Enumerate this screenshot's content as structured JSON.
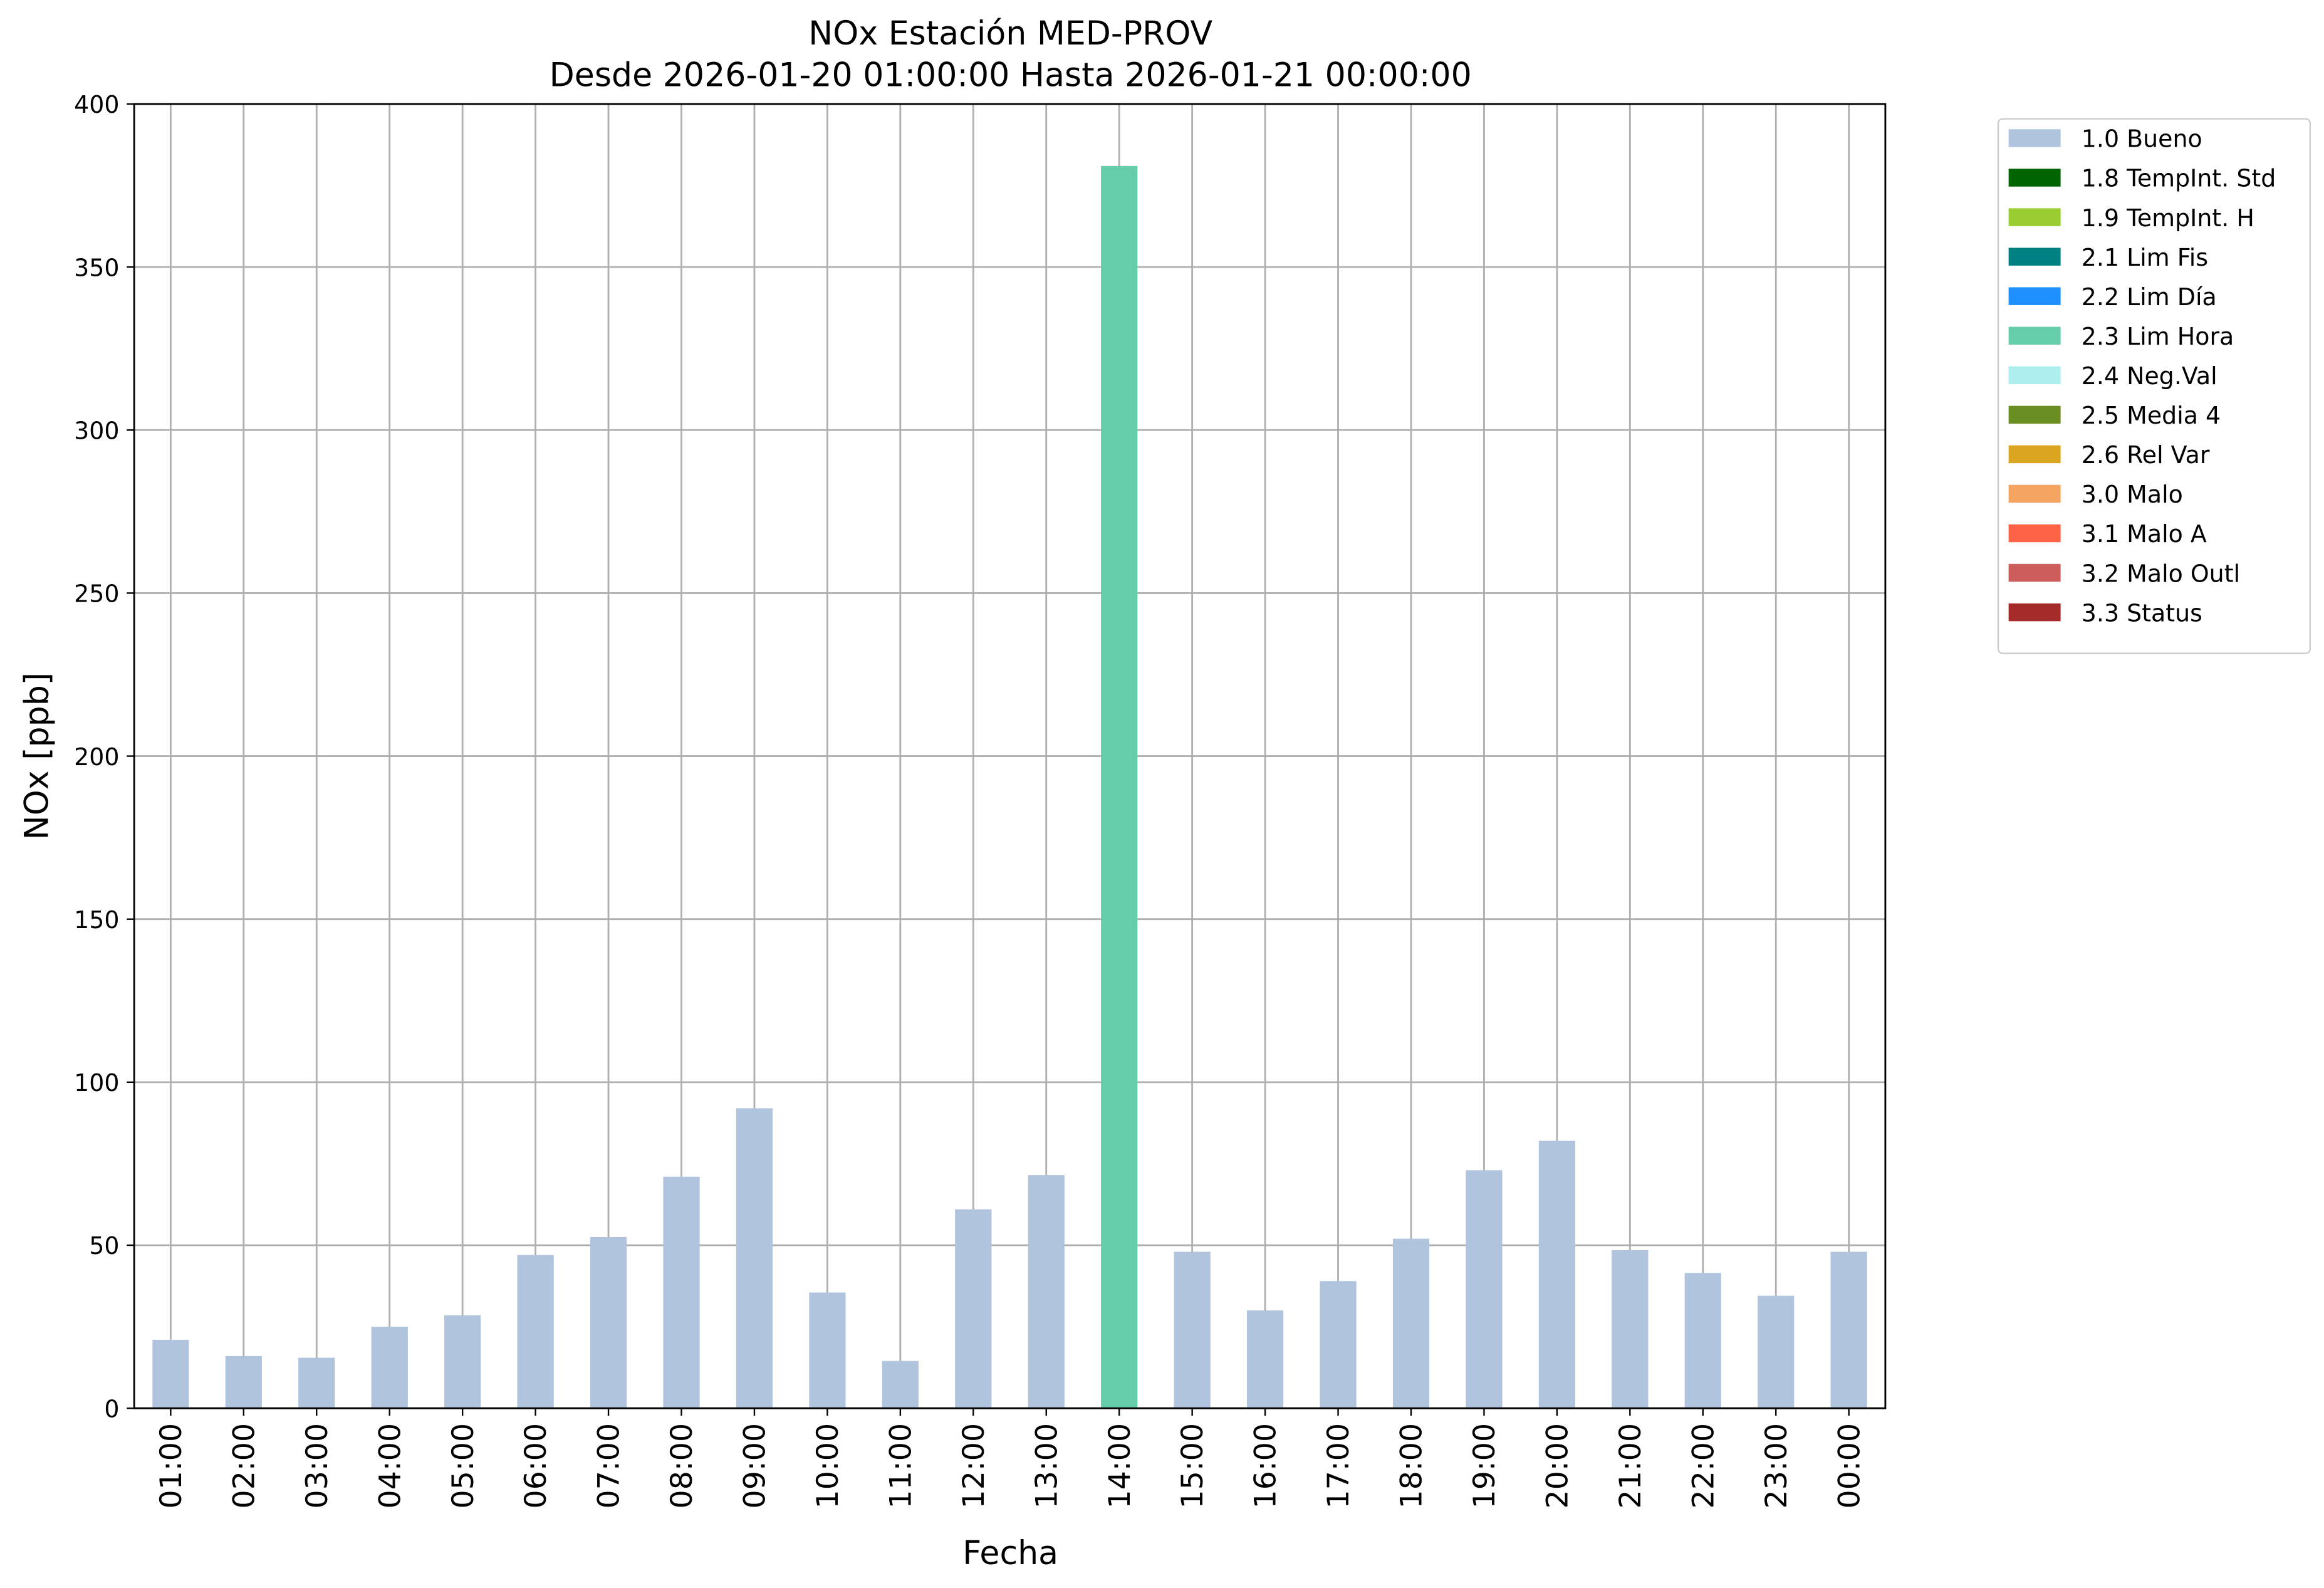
{
  "chart_data": {
    "type": "stacked_bar",
    "title": "NOx Estación MED-PROV",
    "subtitle": "Desde 2026-01-20 01:00:00 Hasta 2026-01-21 00:00:00",
    "x_label": "Fecha",
    "y_label": "NOx [ppb]",
    "categories": [
      "01:00",
      "02:00",
      "03:00",
      "04:00",
      "05:00",
      "06:00",
      "07:00",
      "08:00",
      "09:00",
      "10:00",
      "11:00",
      "12:00",
      "13:00",
      "14:00",
      "15:00",
      "16:00",
      "17:00",
      "18:00",
      "19:00",
      "20:00",
      "21:00",
      "22:00",
      "23:00",
      "00:00"
    ],
    "series": [
      {
        "name": "1.0 Bueno",
        "color": "#b0c4de",
        "values": [
          21,
          16,
          15.5,
          25,
          28.5,
          47,
          52.5,
          71,
          92,
          35.5,
          14.5,
          61,
          71.5,
          null,
          48,
          30,
          39,
          52,
          73,
          82,
          48.5,
          41.5,
          34.5,
          48
        ]
      },
      {
        "name": "1.8 TempInt. Std",
        "color": "#006400",
        "values": [
          null,
          null,
          null,
          null,
          null,
          null,
          null,
          null,
          null,
          null,
          null,
          null,
          null,
          null,
          null,
          null,
          null,
          null,
          null,
          null,
          null,
          null,
          null,
          null
        ]
      },
      {
        "name": "1.9 TempInt. H",
        "color": "#9acd32",
        "values": [
          null,
          null,
          null,
          null,
          null,
          null,
          null,
          null,
          null,
          null,
          null,
          null,
          null,
          null,
          null,
          null,
          null,
          null,
          null,
          null,
          null,
          null,
          null,
          null
        ]
      },
      {
        "name": "2.1 Lim Fis",
        "color": "#008080",
        "values": [
          null,
          null,
          null,
          null,
          null,
          null,
          null,
          null,
          null,
          null,
          null,
          null,
          null,
          null,
          null,
          null,
          null,
          null,
          null,
          null,
          null,
          null,
          null,
          null
        ]
      },
      {
        "name": "2.2 Lim Día",
        "color": "#1e90ff",
        "values": [
          null,
          null,
          null,
          null,
          null,
          null,
          null,
          null,
          null,
          null,
          null,
          null,
          null,
          null,
          null,
          null,
          null,
          null,
          null,
          null,
          null,
          null,
          null,
          null
        ]
      },
      {
        "name": "2.3 Lim Hora",
        "color": "#66cdaa",
        "values": [
          null,
          null,
          null,
          null,
          null,
          null,
          null,
          null,
          null,
          null,
          null,
          null,
          null,
          381,
          null,
          null,
          null,
          null,
          null,
          null,
          null,
          null,
          null,
          null
        ]
      },
      {
        "name": "2.4 Neg.Val",
        "color": "#afeeee",
        "values": [
          null,
          null,
          null,
          null,
          null,
          null,
          null,
          null,
          null,
          null,
          null,
          null,
          null,
          null,
          null,
          null,
          null,
          null,
          null,
          null,
          null,
          null,
          null,
          null
        ]
      },
      {
        "name": "2.5 Media 4",
        "color": "#6b8e23",
        "values": [
          null,
          null,
          null,
          null,
          null,
          null,
          null,
          null,
          null,
          null,
          null,
          null,
          null,
          null,
          null,
          null,
          null,
          null,
          null,
          null,
          null,
          null,
          null,
          null
        ]
      },
      {
        "name": "2.6 Rel Var",
        "color": "#daa520",
        "values": [
          null,
          null,
          null,
          null,
          null,
          null,
          null,
          null,
          null,
          null,
          null,
          null,
          null,
          null,
          null,
          null,
          null,
          null,
          null,
          null,
          null,
          null,
          null,
          null
        ]
      },
      {
        "name": "3.0 Malo",
        "color": "#f4a460",
        "values": [
          null,
          null,
          null,
          null,
          null,
          null,
          null,
          null,
          null,
          null,
          null,
          null,
          null,
          null,
          null,
          null,
          null,
          null,
          null,
          null,
          null,
          null,
          null,
          null
        ]
      },
      {
        "name": "3.1 Malo A",
        "color": "#ff6347",
        "values": [
          null,
          null,
          null,
          null,
          null,
          null,
          null,
          null,
          null,
          null,
          null,
          null,
          null,
          null,
          null,
          null,
          null,
          null,
          null,
          null,
          null,
          null,
          null,
          null
        ]
      },
      {
        "name": "3.2 Malo Outl",
        "color": "#cd5c5c",
        "values": [
          null,
          null,
          null,
          null,
          null,
          null,
          null,
          null,
          null,
          null,
          null,
          null,
          null,
          null,
          null,
          null,
          null,
          null,
          null,
          null,
          null,
          null,
          null,
          null
        ]
      },
      {
        "name": "3.3 Status",
        "color": "#a52a2a",
        "values": [
          null,
          null,
          null,
          null,
          null,
          null,
          null,
          null,
          null,
          null,
          null,
          null,
          null,
          null,
          null,
          null,
          null,
          null,
          null,
          null,
          null,
          null,
          null,
          null
        ]
      }
    ],
    "ylim": [
      0,
      400
    ],
    "yticks": [
      0,
      50,
      100,
      150,
      200,
      250,
      300,
      350,
      400
    ],
    "grid": true,
    "legend": "outside-right"
  }
}
